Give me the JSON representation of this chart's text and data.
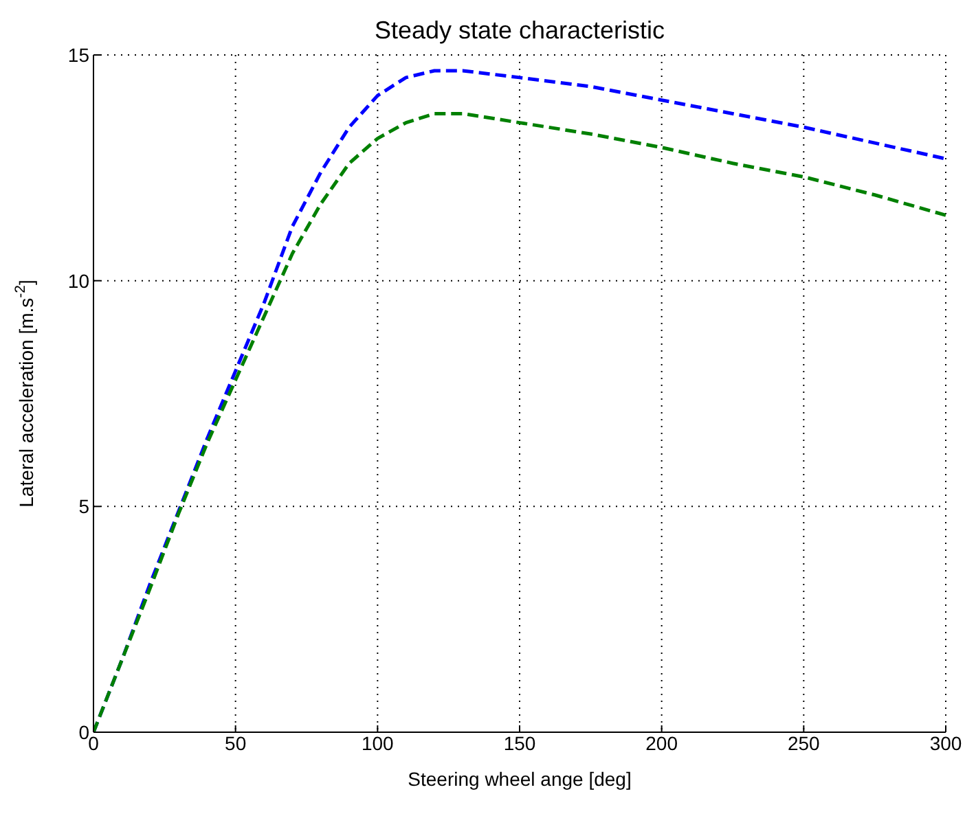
{
  "chart_data": {
    "type": "line",
    "title": "Steady state characteristic",
    "xlabel": "Steering wheel ange [deg]",
    "ylabel": "Lateral acceleration [m.s$^{-2}$]",
    "x": [
      0,
      10,
      20,
      30,
      40,
      50,
      60,
      70,
      80,
      90,
      100,
      110,
      120,
      130,
      150,
      175,
      200,
      225,
      250,
      275,
      300
    ],
    "series": [
      {
        "color": "#0000ff",
        "values": [
          0,
          1.6,
          3.3,
          4.9,
          6.5,
          8.0,
          9.5,
          11.2,
          12.4,
          13.4,
          14.1,
          14.5,
          14.65,
          14.65,
          14.5,
          14.3,
          14.0,
          13.7,
          13.4,
          13.05,
          12.7
        ]
      },
      {
        "color": "#008000",
        "values": [
          0,
          1.6,
          3.2,
          4.85,
          6.4,
          7.8,
          9.2,
          10.6,
          11.7,
          12.6,
          13.15,
          13.5,
          13.7,
          13.7,
          13.5,
          13.25,
          12.95,
          12.6,
          12.3,
          11.9,
          11.45
        ]
      }
    ],
    "xlim": [
      0,
      300
    ],
    "xticks": [
      0,
      50,
      100,
      150,
      200,
      250,
      300
    ],
    "ylim": [
      0,
      15
    ],
    "yticks": [
      0,
      5,
      10,
      15
    ],
    "grid": true,
    "line_style": "dashed",
    "marker": "none"
  }
}
